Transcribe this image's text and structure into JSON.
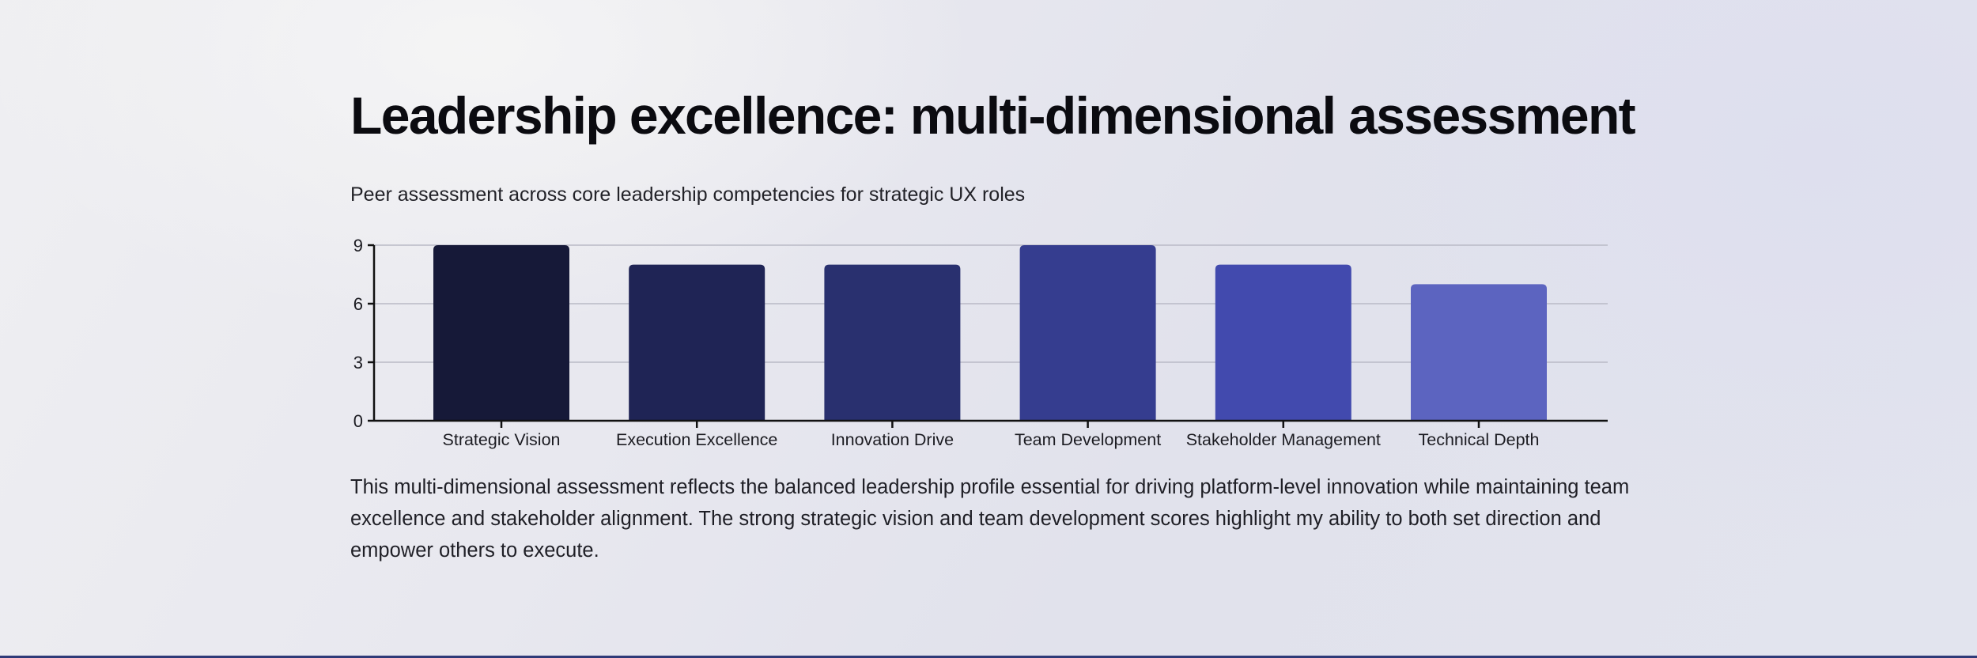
{
  "page": {
    "title": "Leadership excellence: multi-dimensional assessment",
    "subtitle": "Peer assessment across core leadership competencies for strategic UX roles",
    "summary": "This multi-dimensional assessment reflects the balanced leadership profile essential for driving platform-level innovation while maintaining team excellence and stakeholder alignment. The strong strategic vision and team development scores highlight my ability to both set direction and empower others to execute."
  },
  "colors": {
    "bars": [
      "#161938",
      "#1f2455",
      "#29306f",
      "#353d8f",
      "#424aae",
      "#5c64c0"
    ],
    "gridline": "#b9bac6",
    "axis": "#111111",
    "text": "#1c1c22"
  },
  "chart_data": {
    "type": "bar",
    "title": "",
    "xlabel": "",
    "ylabel": "",
    "categories": [
      "Strategic Vision",
      "Execution Excellence",
      "Innovation Drive",
      "Team Development",
      "Stakeholder Management",
      "Technical Depth"
    ],
    "values": [
      9,
      8,
      8,
      9,
      8,
      7
    ],
    "ylim": [
      0,
      9
    ],
    "yticks": [
      "0",
      "3",
      "6",
      "9"
    ],
    "grid": true,
    "legend": "none"
  }
}
